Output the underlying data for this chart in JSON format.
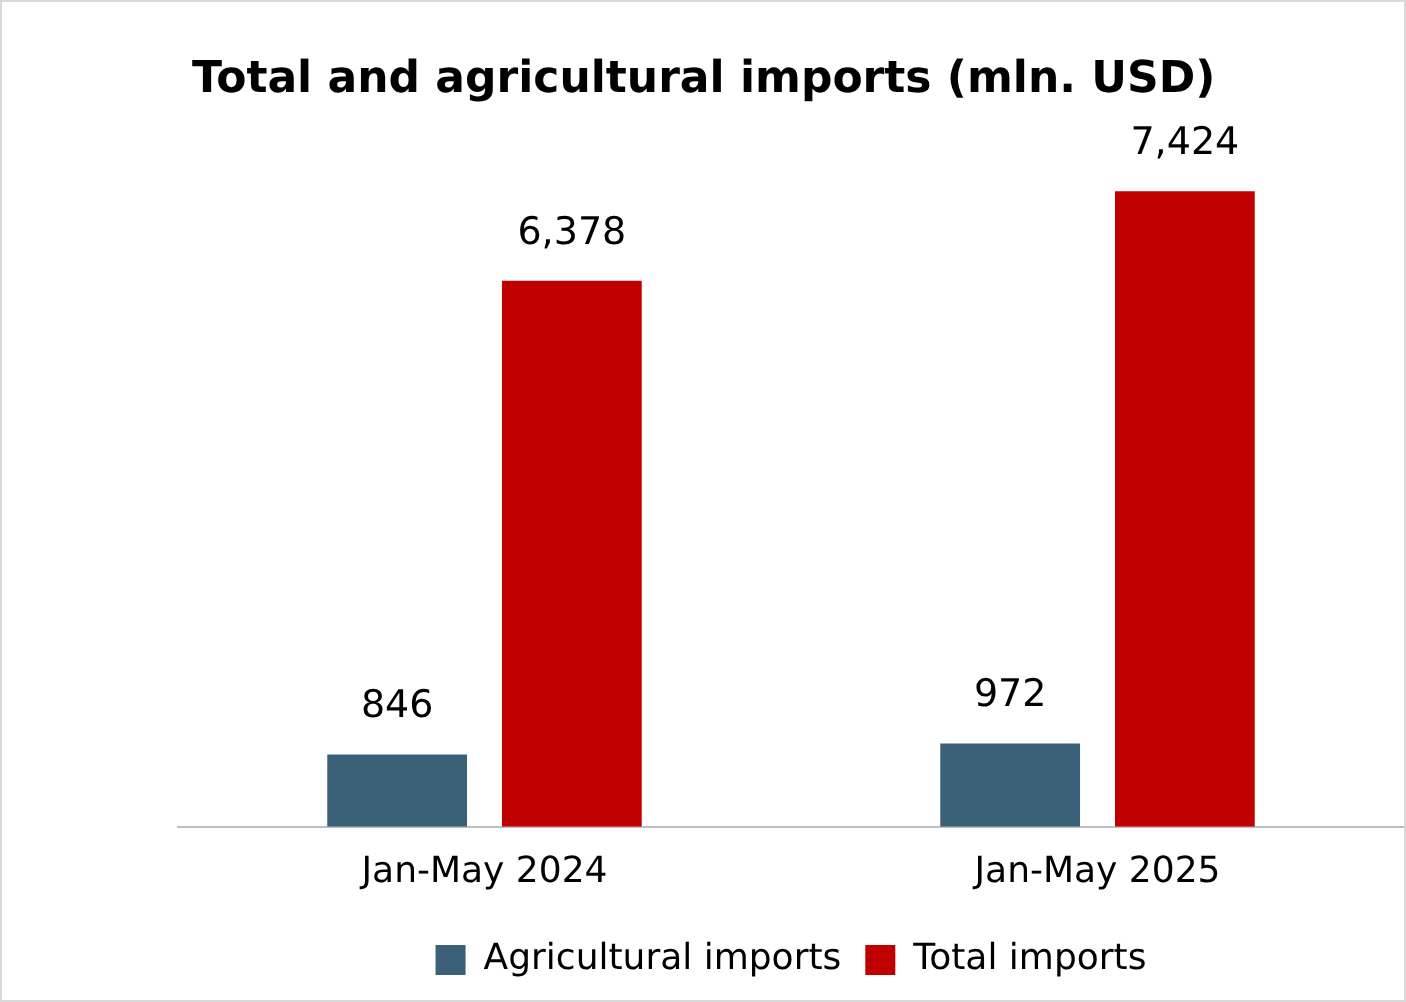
{
  "chart_data": {
    "type": "bar",
    "title": "Total and agricultural imports (mln. USD)",
    "categories": [
      "Jan-May 2024",
      "Jan-May 2025"
    ],
    "series": [
      {
        "name": "Agricultural imports",
        "color": "#3b6178",
        "values": [
          846,
          972
        ],
        "value_labels": [
          "846",
          "972"
        ]
      },
      {
        "name": "Total imports",
        "color": "#c00000",
        "values": [
          6378,
          7424
        ],
        "value_labels": [
          "6,378",
          "7,424"
        ]
      }
    ],
    "legend": "bottom",
    "tick_labels": "x",
    "grid": false
  }
}
